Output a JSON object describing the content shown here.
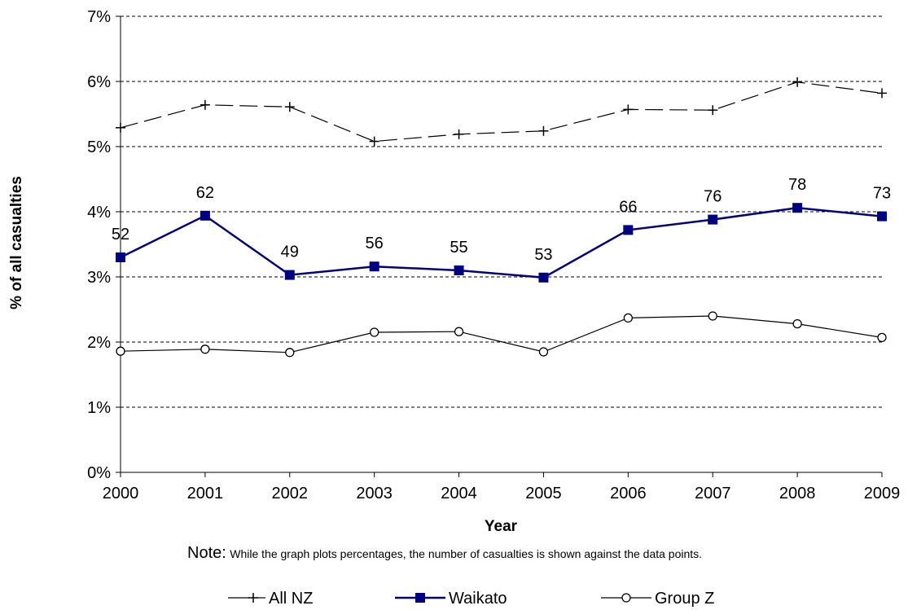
{
  "chart_data": {
    "type": "line",
    "title": "",
    "xlabel": "Year",
    "ylabel": "% of all casualties",
    "x": [
      "2000",
      "2001",
      "2002",
      "2003",
      "2004",
      "2005",
      "2006",
      "2007",
      "2008",
      "2009"
    ],
    "ylim": [
      0,
      7
    ],
    "yticks": [
      0,
      1,
      2,
      3,
      4,
      5,
      6,
      7
    ],
    "ytick_labels": [
      "0%",
      "1%",
      "2%",
      "3%",
      "4%",
      "5%",
      "6%",
      "7%"
    ],
    "grid": "horizontal dashed",
    "legend_position": "bottom",
    "series": [
      {
        "name": "All NZ",
        "values": [
          5.29,
          5.64,
          5.61,
          5.08,
          5.19,
          5.24,
          5.57,
          5.56,
          5.99,
          5.82
        ],
        "color": "#000000",
        "marker": "plus",
        "line": "dashed"
      },
      {
        "name": "Waikato",
        "values": [
          3.3,
          3.94,
          3.03,
          3.16,
          3.1,
          2.99,
          3.72,
          3.88,
          4.06,
          3.93
        ],
        "color": "#000080",
        "marker": "square",
        "line": "solid",
        "labels": [
          "52",
          "62",
          "49",
          "56",
          "55",
          "53",
          "66",
          "76",
          "78",
          "73"
        ]
      },
      {
        "name": "Group Z",
        "values": [
          1.86,
          1.89,
          1.84,
          2.15,
          2.16,
          1.85,
          2.37,
          2.4,
          2.28,
          2.07
        ],
        "color": "#000000",
        "marker": "circle",
        "line": "solid"
      }
    ],
    "note_head": "Note:",
    "note_body": "While the graph plots percentages, the number of casualties is shown against the data points."
  }
}
